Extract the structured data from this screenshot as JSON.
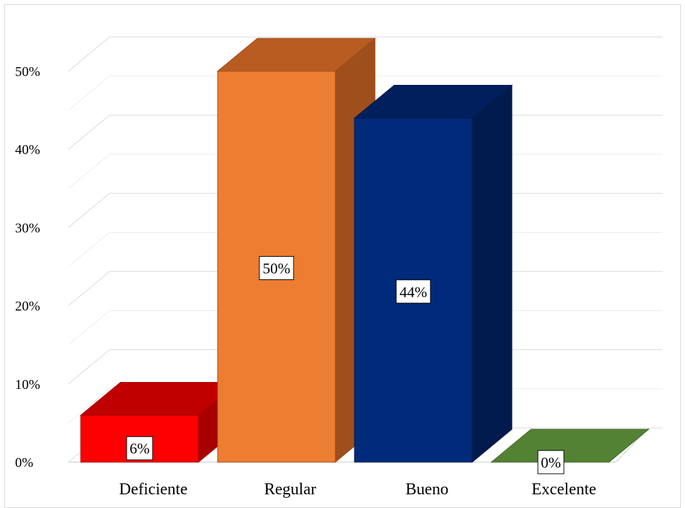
{
  "chart_data": {
    "type": "bar",
    "style": "3d-column",
    "categories": [
      "Deficiente",
      "Regular",
      "Bueno",
      "Excelente"
    ],
    "values": [
      6,
      50,
      44,
      0
    ],
    "data_labels": [
      "6%",
      "50%",
      "44%",
      "0%"
    ],
    "ylim": [
      0,
      50
    ],
    "y_ticks": [
      "0%",
      "10%",
      "20%",
      "30%",
      "40%",
      "50%"
    ],
    "grid": true,
    "legend": "none",
    "colors": {
      "Deficiente": {
        "front": "#ff0000",
        "top": "#c00000",
        "side": "#a80000"
      },
      "Regular": {
        "front": "#ed7d31",
        "top": "#b85c22",
        "side": "#9e4f1c"
      },
      "Bueno": {
        "front": "#002a7a",
        "top": "#001f5c",
        "side": "#001a4d"
      },
      "Excelente": {
        "front": "#548235",
        "top": "#548235",
        "side": "#3f6428"
      }
    }
  }
}
